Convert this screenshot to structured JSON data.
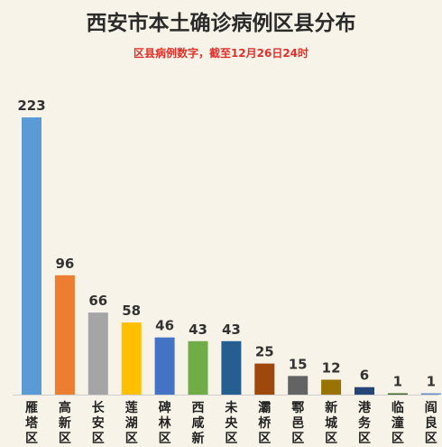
{
  "title": "西安市本土确诊病例区县分布",
  "subtitle": "区县病例数字，截至12月26日24时",
  "chart_data": {
    "type": "bar",
    "title": "西安市本土确诊病例区县分布",
    "subtitle": "区县病例数字，截至12月26日24时",
    "categories": [
      "雁塔区",
      "高新区",
      "长安区",
      "莲湖区",
      "碑林区",
      "西咸新",
      "未央区",
      "灞桥区",
      "鄠邑区",
      "新城区",
      "港务区",
      "临潼区",
      "阎良区"
    ],
    "values": [
      223,
      96,
      66,
      58,
      46,
      43,
      43,
      25,
      15,
      12,
      6,
      1,
      1
    ],
    "colors": [
      "#5b9bd5",
      "#ed7d31",
      "#a5a5a5",
      "#ffc000",
      "#4472c4",
      "#70ad47",
      "#255e91",
      "#9e480e",
      "#636363",
      "#997300",
      "#264478",
      "#43682b",
      "#698ed0"
    ],
    "xlabel": "",
    "ylabel": "",
    "ylim": [
      0,
      223
    ],
    "grid": false,
    "legend": "none"
  }
}
